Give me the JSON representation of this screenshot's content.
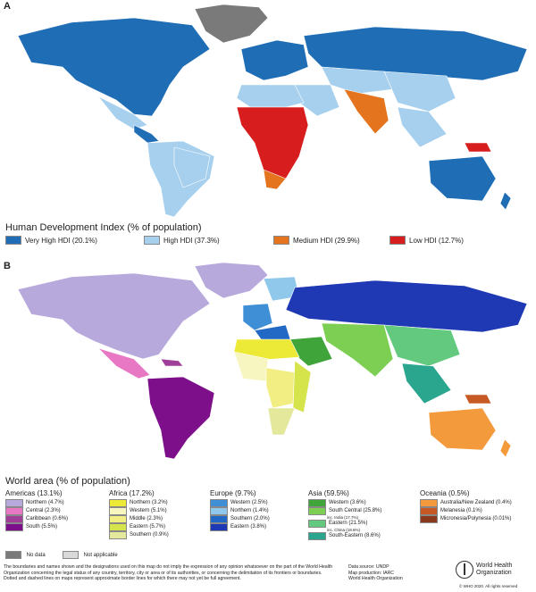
{
  "panels": [
    "A",
    "B"
  ],
  "map_a": {
    "legend_title": "Human Development Index (% of population)",
    "items": [
      {
        "label": "Very High HDI (20.1%)",
        "color": "#1f6db5"
      },
      {
        "label": "High HDI (37.3%)",
        "color": "#a6d0ee"
      },
      {
        "label": "Medium HDI (29.9%)",
        "color": "#e4741d"
      },
      {
        "label": "Low HDI (12.7%)",
        "color": "#d71d1d"
      }
    ],
    "no_data_color": "#7a7a7a"
  },
  "map_b": {
    "legend_title": "World area (% of population)",
    "groups": [
      {
        "name": "Americas (13.1%)",
        "items": [
          {
            "label": "Northern (4.7%)",
            "color": "#b8a9dd"
          },
          {
            "label": "Central (2.3%)",
            "color": "#e878c4"
          },
          {
            "label": "Caribbean (0.6%)",
            "color": "#a03f9a"
          },
          {
            "label": "South (5.5%)",
            "color": "#7d0f8a"
          }
        ]
      },
      {
        "name": "Africa (17.2%)",
        "items": [
          {
            "label": "Northern (3.2%)",
            "color": "#ecea36"
          },
          {
            "label": "Western (5.1%)",
            "color": "#f8f6c0"
          },
          {
            "label": "Middle (2.3%)",
            "color": "#f2ee84"
          },
          {
            "label": "Eastern (5.7%)",
            "color": "#d6e44c"
          },
          {
            "label": "Southern (0.9%)",
            "color": "#e3e89a"
          }
        ]
      },
      {
        "name": "Europe (9.7%)",
        "items": [
          {
            "label": "Western (2.5%)",
            "color": "#3f8fd6"
          },
          {
            "label": "Northern (1.4%)",
            "color": "#8fc8ea"
          },
          {
            "label": "Southern (2.0%)",
            "color": "#2169c4"
          },
          {
            "label": "Eastern (3.8%)",
            "color": "#1f39b5"
          }
        ]
      },
      {
        "name": "Asia (59.5%)",
        "items": [
          {
            "label": "Western (3.6%)",
            "color": "#3fa43a",
            "sub": ""
          },
          {
            "label": "South Central (25.8%)",
            "color": "#7ccf52",
            "sub": "inc. India (17.7%)"
          },
          {
            "label": "Eastern (21.5%)",
            "color": "#63c97e",
            "sub": "inc. China (18.6%)"
          },
          {
            "label": "South-Eastern (8.6%)",
            "color": "#2aa58e",
            "sub": ""
          }
        ]
      },
      {
        "name": "Oceania (0.5%)",
        "items": [
          {
            "label": "Australia/New Zealand (0.4%)",
            "color": "#f39a3c"
          },
          {
            "label": "Melanesia (0.1%)",
            "color": "#c75a24"
          },
          {
            "label": "Micronesia/Polynesia (0.01%)",
            "color": "#8a3a1a"
          }
        ]
      }
    ],
    "no_data_label": "No data",
    "not_applicable_label": "Not applicable"
  },
  "footnote": "The boundaries and names shown and the designations used on this map do not imply the expression of any opinion whatsoever on the part of the World Health Organization concerning the legal status of any country, territory, city or area or of its authorities, or concerning the delimitation of its frontiers or boundaries. Dotted and dashed lines on maps represent approximate border lines for which there may not yet be full agreement.",
  "source_lines": [
    "Data source: UNDP",
    "Map production: IARC",
    "World Health Organization"
  ],
  "who_name": [
    "World Health",
    "Organization"
  ],
  "copyright": "© WHO 2020. All rights reserved"
}
